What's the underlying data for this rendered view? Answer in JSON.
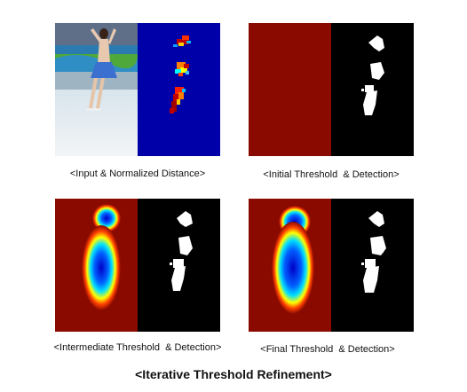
{
  "panels": [
    {
      "caption": "<Input & Normalized Distance>"
    },
    {
      "caption": "<Initial Threshold  & Detection>"
    },
    {
      "caption": "<Intermediate Threshold  & Detection>"
    },
    {
      "caption": "<Final Threshold  & Detection>"
    }
  ],
  "main_title": "<Iterative Threshold Refinement>",
  "colors": {
    "dark_red": "#8a0a00",
    "jet_blue": "#0000a8",
    "mask_white": "#ffffff",
    "mask_black": "#000000"
  }
}
